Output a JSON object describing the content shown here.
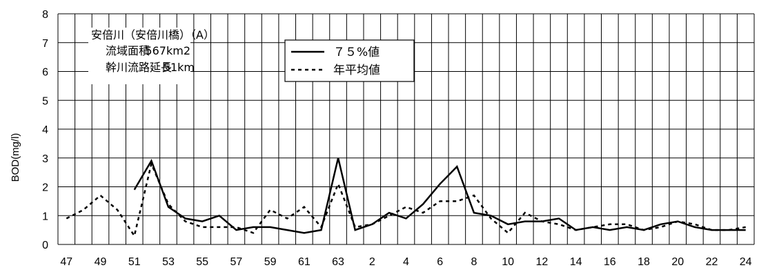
{
  "chart_data": {
    "type": "line",
    "ylabel": "BOD(mg/l)",
    "ylim": [
      0,
      8
    ],
    "yticks": [
      "0",
      "1",
      "2",
      "3",
      "4",
      "5",
      "6",
      "7",
      "8"
    ],
    "x_tick_labels": [
      "47",
      "49",
      "51",
      "53",
      "55",
      "57",
      "59",
      "61",
      "63",
      "2",
      "4",
      "6",
      "8",
      "10",
      "12",
      "14",
      "16",
      "18",
      "20",
      "22",
      "24"
    ],
    "x": [
      "47",
      "48",
      "49",
      "50",
      "51",
      "52",
      "53",
      "54",
      "55",
      "56",
      "57",
      "58",
      "59",
      "60",
      "61",
      "62",
      "63",
      "1",
      "2",
      "3",
      "4",
      "5",
      "6",
      "7",
      "8",
      "9",
      "10",
      "11",
      "12",
      "13",
      "14",
      "15",
      "16",
      "17",
      "18",
      "19",
      "20",
      "21",
      "22",
      "23",
      "24"
    ],
    "grid": true,
    "legend_position": "top-center",
    "annotation": {
      "title": "安倍川（安倍川橋）（A）",
      "line1_label": "流域面積",
      "line1_value": "567km2",
      "line2_label": "幹川流路延長",
      "line2_value": "51km"
    },
    "series": [
      {
        "name": "７５%値",
        "style": "solid",
        "values": [
          null,
          null,
          null,
          null,
          1.9,
          2.9,
          1.3,
          0.9,
          0.8,
          1.0,
          0.5,
          0.6,
          0.6,
          0.5,
          0.4,
          0.5,
          3.0,
          0.5,
          0.7,
          1.1,
          0.9,
          1.4,
          2.1,
          2.7,
          1.1,
          1.0,
          0.7,
          0.8,
          0.8,
          0.9,
          0.5,
          0.6,
          0.5,
          0.6,
          0.5,
          0.7,
          0.8,
          0.6,
          0.5,
          0.5,
          0.5
        ]
      },
      {
        "name": "年平均値",
        "style": "dashed",
        "values": [
          0.9,
          1.2,
          1.7,
          1.2,
          0.3,
          2.8,
          1.4,
          0.8,
          0.6,
          0.6,
          0.6,
          0.4,
          1.2,
          0.9,
          1.3,
          0.6,
          2.1,
          0.6,
          0.7,
          1.0,
          1.3,
          1.1,
          1.5,
          1.5,
          1.7,
          0.9,
          0.4,
          1.1,
          0.8,
          0.7,
          0.5,
          0.6,
          0.7,
          0.7,
          0.5,
          0.6,
          0.8,
          0.7,
          0.5,
          0.5,
          0.6
        ]
      }
    ]
  }
}
